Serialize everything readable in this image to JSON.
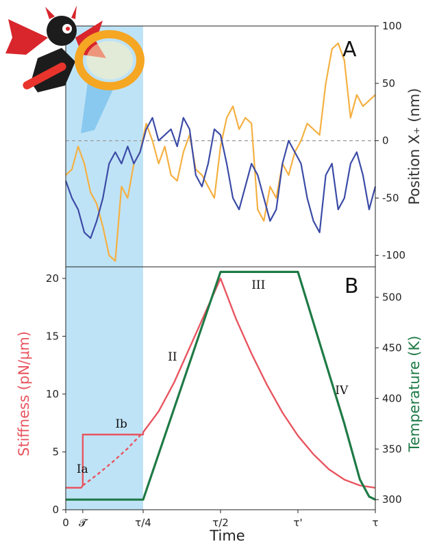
{
  "figure": {
    "panel_a_letter": "A",
    "panel_b_letter": "B",
    "mascot_icon": "devil-with-magnifying-glass-icon"
  },
  "colors": {
    "orange": "#f5b041",
    "blue": "#3b4ba6",
    "red": "#e8545f",
    "green": "#1e7a45",
    "shade": "#bfe3f6",
    "zero_line": "#999999"
  },
  "chart_data": [
    {
      "type": "line",
      "panel": "A",
      "ylabel": "Position X₊ (nm)",
      "y_axis_side": "right",
      "ylim": [
        -110,
        100
      ],
      "yticks": [
        100,
        50,
        0,
        -50,
        -100
      ],
      "xlim": [
        0,
        1
      ],
      "reference_line": {
        "y": 0,
        "style": "dashed"
      },
      "shaded_interval": [
        0,
        0.25
      ],
      "series": [
        {
          "color": "orange",
          "x": [
            0,
            0.02,
            0.04,
            0.06,
            0.08,
            0.1,
            0.12,
            0.14,
            0.16,
            0.18,
            0.2,
            0.22,
            0.24,
            0.26,
            0.28,
            0.3,
            0.32,
            0.34,
            0.36,
            0.38,
            0.4,
            0.42,
            0.44,
            0.46,
            0.48,
            0.5,
            0.52,
            0.54,
            0.56,
            0.58,
            0.6,
            0.62,
            0.64,
            0.66,
            0.68,
            0.7,
            0.72,
            0.74,
            0.76,
            0.78,
            0.8,
            0.82,
            0.84,
            0.86,
            0.88,
            0.9,
            0.92,
            0.94,
            0.96,
            0.98,
            1.0
          ],
          "values": [
            -30,
            -25,
            -5,
            -20,
            -45,
            -55,
            -75,
            -100,
            -105,
            -40,
            -50,
            -20,
            -10,
            15,
            0,
            -20,
            -5,
            -30,
            -35,
            -10,
            5,
            -25,
            -30,
            -40,
            -50,
            -5,
            20,
            30,
            10,
            20,
            15,
            -60,
            -70,
            -40,
            -50,
            -20,
            -30,
            -10,
            0,
            15,
            10,
            5,
            50,
            80,
            85,
            70,
            20,
            40,
            30,
            35,
            40
          ]
        },
        {
          "color": "blue",
          "x": [
            0,
            0.02,
            0.04,
            0.06,
            0.08,
            0.1,
            0.12,
            0.14,
            0.16,
            0.18,
            0.2,
            0.22,
            0.24,
            0.26,
            0.28,
            0.3,
            0.32,
            0.34,
            0.36,
            0.38,
            0.4,
            0.42,
            0.44,
            0.46,
            0.48,
            0.5,
            0.52,
            0.54,
            0.56,
            0.58,
            0.6,
            0.62,
            0.64,
            0.66,
            0.68,
            0.7,
            0.72,
            0.74,
            0.76,
            0.78,
            0.8,
            0.82,
            0.84,
            0.86,
            0.88,
            0.9,
            0.92,
            0.94,
            0.96,
            0.98,
            1.0
          ],
          "values": [
            -35,
            -50,
            -60,
            -80,
            -85,
            -70,
            -50,
            -20,
            -10,
            -20,
            -5,
            -20,
            -10,
            10,
            20,
            0,
            5,
            10,
            -5,
            20,
            10,
            -30,
            -40,
            -20,
            10,
            5,
            -20,
            -50,
            -60,
            -40,
            -20,
            -30,
            -50,
            -70,
            -60,
            -20,
            0,
            -10,
            -20,
            -50,
            -70,
            -80,
            -30,
            -20,
            -60,
            -50,
            -20,
            -10,
            -30,
            -60,
            -40
          ]
        }
      ]
    },
    {
      "type": "line",
      "panel": "B",
      "xlabel": "Time",
      "xlim": [
        0,
        1
      ],
      "xticks": [
        {
          "x": 0,
          "label": "0"
        },
        {
          "x": 0.055,
          "label": "𝓣"
        },
        {
          "x": 0.25,
          "label": "τ/4"
        },
        {
          "x": 0.5,
          "label": "τ/2"
        },
        {
          "x": 0.75,
          "label": "τ'"
        },
        {
          "x": 1.0,
          "label": "τ"
        }
      ],
      "left_axis": {
        "label": "Stiffness (pN/μm)",
        "ylim": [
          0,
          21
        ],
        "ticks": [
          0,
          5,
          10,
          15,
          20
        ]
      },
      "right_axis": {
        "label": "Temperature (K)",
        "ylim": [
          290,
          530
        ],
        "ticks": [
          300,
          350,
          400,
          450,
          500
        ]
      },
      "shaded_interval": [
        0,
        0.25
      ],
      "region_labels": [
        {
          "text": "Ia",
          "x": 0.035,
          "y_stiffness": 3.2
        },
        {
          "text": "Ib",
          "x": 0.16,
          "y_stiffness": 7.1
        },
        {
          "text": "II",
          "x": 0.33,
          "y_stiffness": 12.9
        },
        {
          "text": "III",
          "x": 0.6,
          "y_stiffness": 19.1
        },
        {
          "text": "IV",
          "x": 0.87,
          "y_stiffness": 10.0
        }
      ],
      "series": [
        {
          "axis": "left",
          "color": "red",
          "style": "solid",
          "x": [
            0,
            0.05,
            0.055,
            0.055,
            0.25,
            0.25,
            0.3,
            0.35,
            0.4,
            0.45,
            0.5,
            0.55,
            0.6,
            0.65,
            0.7,
            0.75,
            0.8,
            0.85,
            0.9,
            0.95,
            1.0
          ],
          "values": [
            1.9,
            1.9,
            2.1,
            6.5,
            6.5,
            6.7,
            8.5,
            11.0,
            14.0,
            17.0,
            20.0,
            16.5,
            13.5,
            10.8,
            8.4,
            6.4,
            4.8,
            3.5,
            2.6,
            2.1,
            1.9
          ]
        },
        {
          "axis": "left",
          "color": "red",
          "style": "dashed",
          "x": [
            0.055,
            0.1,
            0.15,
            0.2,
            0.25
          ],
          "values": [
            2.1,
            3.0,
            4.1,
            5.3,
            6.7
          ]
        },
        {
          "axis": "right",
          "color": "green",
          "style": "solid",
          "x": [
            0,
            0.25,
            0.5,
            0.75,
            0.9,
            0.95,
            0.98,
            1.0
          ],
          "values": [
            300,
            300,
            525,
            525,
            375,
            320,
            303,
            300
          ]
        }
      ]
    }
  ]
}
